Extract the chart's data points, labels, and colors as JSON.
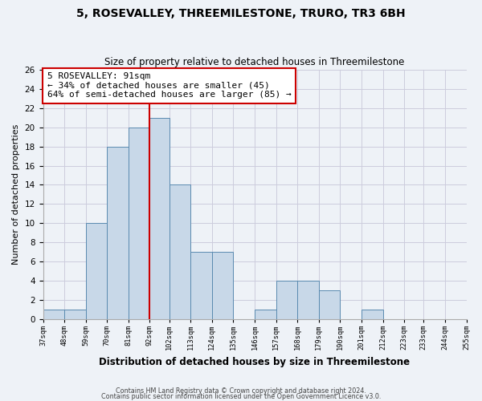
{
  "title": "5, ROSEVALLEY, THREEMILESTONE, TRURO, TR3 6BH",
  "subtitle": "Size of property relative to detached houses in Threemilestone",
  "xlabel": "Distribution of detached houses by size in Threemilestone",
  "ylabel": "Number of detached properties",
  "footer_line1": "Contains HM Land Registry data © Crown copyright and database right 2024.",
  "footer_line2": "Contains public sector information licensed under the Open Government Licence v3.0.",
  "bin_edges": [
    37,
    48,
    59,
    70,
    81,
    92,
    102,
    113,
    124,
    135,
    146,
    157,
    168,
    179,
    190,
    201,
    212,
    223,
    233,
    244,
    255
  ],
  "bin_labels": [
    "37sqm",
    "48sqm",
    "59sqm",
    "70sqm",
    "81sqm",
    "92sqm",
    "102sqm",
    "113sqm",
    "124sqm",
    "135sqm",
    "146sqm",
    "157sqm",
    "168sqm",
    "179sqm",
    "190sqm",
    "201sqm",
    "212sqm",
    "223sqm",
    "233sqm",
    "244sqm",
    "255sqm"
  ],
  "counts": [
    1,
    1,
    10,
    18,
    20,
    21,
    14,
    7,
    7,
    0,
    1,
    4,
    4,
    3,
    0,
    1,
    0,
    0,
    0,
    0
  ],
  "bar_color": "#c8d8e8",
  "bar_edge_color": "#5a8ab0",
  "vline_x": 92,
  "vline_color": "#cc0000",
  "annotation_title": "5 ROSEVALLEY: 91sqm",
  "annotation_line1": "← 34% of detached houses are smaller (45)",
  "annotation_line2": "64% of semi-detached houses are larger (85) →",
  "annotation_box_color": "#ffffff",
  "annotation_box_edge": "#cc0000",
  "ylim": [
    0,
    26
  ],
  "yticks": [
    0,
    2,
    4,
    6,
    8,
    10,
    12,
    14,
    16,
    18,
    20,
    22,
    24,
    26
  ],
  "grid_color": "#ccccdd",
  "background_color": "#eef2f7"
}
